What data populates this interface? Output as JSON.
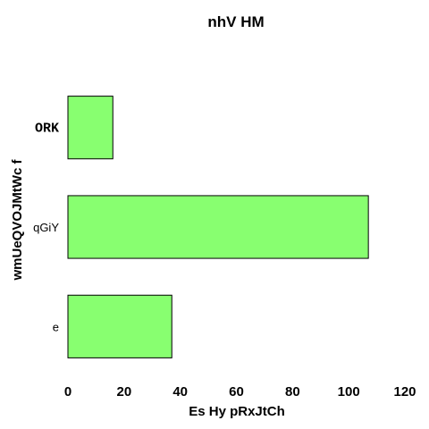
{
  "chart_data": {
    "type": "bar",
    "orientation": "horizontal",
    "title": "nhV  HM",
    "xlabel": "Es  Hy pRxJtCh",
    "ylabel": "wmUeQVOJMtWc f",
    "categories": [
      "ORK",
      "qGiY",
      "e"
    ],
    "values": [
      16,
      107,
      37
    ],
    "xlim": [
      0,
      120
    ],
    "xticks": [
      "0",
      "20",
      "40",
      "60",
      "80",
      "100",
      "120"
    ],
    "grid": false,
    "bar_color": "#88ff70",
    "bar_edge_color": "#000000"
  }
}
